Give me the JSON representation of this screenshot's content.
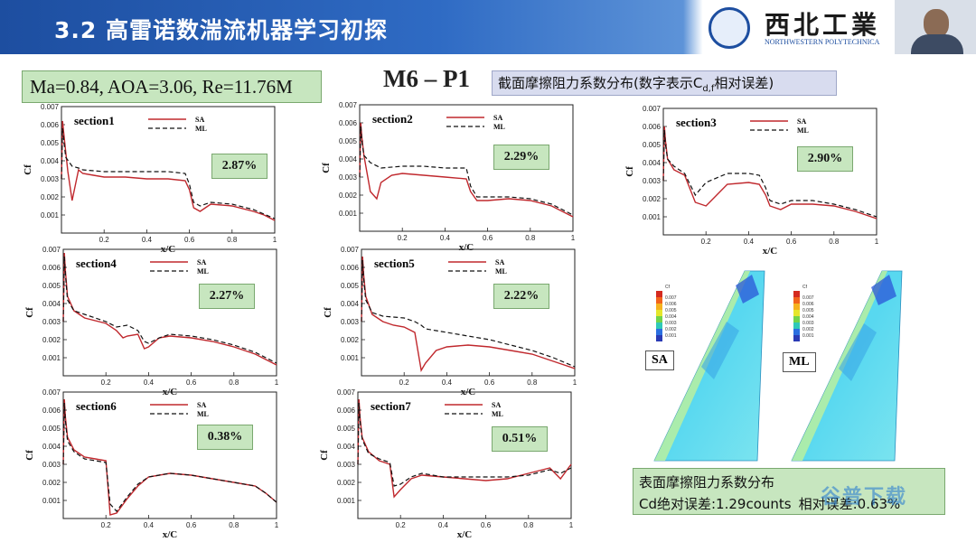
{
  "slide": {
    "title": "3.2 高雷诺数湍流机器学习初探"
  },
  "logo": {
    "cn": "西北工業",
    "en": "NORTHWESTERN POLYTECHNICA"
  },
  "conditions": "Ma=0.84, AOA=3.06, Re=11.76M",
  "case_title": "M6 – P1",
  "caption": {
    "prefix": "截面摩擦阻力系数分布(数字表示C",
    "sub": "d,f",
    "suffix": "相对误差)"
  },
  "legend": {
    "sa": "SA",
    "ml": "ML"
  },
  "axis": {
    "xlabel": "x/C",
    "ylabel": "Cf"
  },
  "colors": {
    "sa": "#c0282d",
    "ml": "#111111",
    "box": "#c7e6bf"
  },
  "chart_data": [
    {
      "type": "line",
      "title": "section1",
      "error": "2.87%",
      "xlim": [
        0,
        1
      ],
      "ylim": [
        0,
        0.007
      ],
      "xticks": [
        "0.2",
        "0.4",
        "0.6",
        "0.8",
        "1"
      ],
      "yticks": [
        "0.001",
        "0.002",
        "0.003",
        "0.004",
        "0.005",
        "0.006",
        "0.007"
      ],
      "series": [
        {
          "name": "SA",
          "x": [
            0,
            0.005,
            0.01,
            0.02,
            0.03,
            0.05,
            0.08,
            0.1,
            0.15,
            0.2,
            0.3,
            0.4,
            0.5,
            0.58,
            0.6,
            0.62,
            0.65,
            0.7,
            0.8,
            0.9,
            0.95,
            1.0
          ],
          "y": [
            0.003,
            0.0062,
            0.0056,
            0.0045,
            0.0034,
            0.0018,
            0.0035,
            0.0033,
            0.0032,
            0.0031,
            0.0031,
            0.003,
            0.003,
            0.0029,
            0.0024,
            0.0014,
            0.0012,
            0.0016,
            0.0015,
            0.0012,
            0.001,
            0.0007
          ]
        },
        {
          "name": "ML",
          "x": [
            0,
            0.005,
            0.01,
            0.02,
            0.05,
            0.08,
            0.1,
            0.2,
            0.3,
            0.4,
            0.5,
            0.58,
            0.6,
            0.62,
            0.65,
            0.7,
            0.8,
            0.9,
            1.0
          ],
          "y": [
            0.003,
            0.0058,
            0.0052,
            0.0042,
            0.0037,
            0.0036,
            0.0035,
            0.0034,
            0.0034,
            0.0034,
            0.0034,
            0.0033,
            0.0027,
            0.0017,
            0.0015,
            0.0017,
            0.0016,
            0.0013,
            0.0008
          ]
        }
      ]
    },
    {
      "type": "line",
      "title": "section2",
      "error": "2.29%",
      "xlim": [
        0,
        1
      ],
      "ylim": [
        0,
        0.007
      ],
      "xticks": [
        "0.2",
        "0.4",
        "0.6",
        "0.8",
        "1"
      ],
      "yticks": [
        "0.001",
        "0.002",
        "0.003",
        "0.004",
        "0.005",
        "0.006",
        "0.007"
      ],
      "series": [
        {
          "name": "SA",
          "x": [
            0,
            0.005,
            0.01,
            0.02,
            0.05,
            0.08,
            0.1,
            0.15,
            0.2,
            0.3,
            0.4,
            0.5,
            0.52,
            0.55,
            0.6,
            0.7,
            0.8,
            0.9,
            1.0
          ],
          "y": [
            0.003,
            0.006,
            0.0052,
            0.0042,
            0.0022,
            0.0018,
            0.0027,
            0.0031,
            0.0032,
            0.0031,
            0.003,
            0.0029,
            0.0022,
            0.0017,
            0.0017,
            0.0018,
            0.0017,
            0.0014,
            0.0008
          ]
        },
        {
          "name": "ML",
          "x": [
            0,
            0.005,
            0.01,
            0.02,
            0.05,
            0.1,
            0.2,
            0.3,
            0.4,
            0.5,
            0.52,
            0.55,
            0.6,
            0.7,
            0.8,
            0.9,
            1.0
          ],
          "y": [
            0.003,
            0.0058,
            0.005,
            0.0042,
            0.0038,
            0.0035,
            0.0036,
            0.0036,
            0.0035,
            0.0035,
            0.0025,
            0.0019,
            0.0019,
            0.0019,
            0.0018,
            0.0015,
            0.0009
          ]
        }
      ]
    },
    {
      "type": "line",
      "title": "section3",
      "error": "2.90%",
      "xlim": [
        0,
        1
      ],
      "ylim": [
        0,
        0.007
      ],
      "xticks": [
        "0.2",
        "0.4",
        "0.6",
        "0.8",
        "1"
      ],
      "yticks": [
        "0.001",
        "0.002",
        "0.003",
        "0.004",
        "0.005",
        "0.006",
        "0.007"
      ],
      "series": [
        {
          "name": "SA",
          "x": [
            0,
            0.005,
            0.01,
            0.02,
            0.05,
            0.1,
            0.15,
            0.2,
            0.25,
            0.3,
            0.4,
            0.45,
            0.48,
            0.5,
            0.55,
            0.6,
            0.7,
            0.8,
            0.9,
            1.0
          ],
          "y": [
            0.003,
            0.006,
            0.0052,
            0.0042,
            0.0036,
            0.0033,
            0.0018,
            0.0016,
            0.0022,
            0.0028,
            0.0029,
            0.0028,
            0.0022,
            0.0016,
            0.0014,
            0.0017,
            0.0017,
            0.0016,
            0.0013,
            0.0009
          ]
        },
        {
          "name": "ML",
          "x": [
            0,
            0.005,
            0.01,
            0.02,
            0.05,
            0.1,
            0.15,
            0.2,
            0.3,
            0.4,
            0.45,
            0.48,
            0.5,
            0.55,
            0.6,
            0.7,
            0.8,
            0.9,
            1.0
          ],
          "y": [
            0.003,
            0.0058,
            0.005,
            0.0042,
            0.0038,
            0.0034,
            0.0022,
            0.0029,
            0.0034,
            0.0034,
            0.0033,
            0.0026,
            0.0019,
            0.0017,
            0.0019,
            0.0019,
            0.0017,
            0.0014,
            0.001
          ]
        }
      ]
    },
    {
      "type": "line",
      "title": "section4",
      "error": "2.27%",
      "xlim": [
        0,
        1
      ],
      "ylim": [
        0,
        0.007
      ],
      "xticks": [
        "0.2",
        "0.4",
        "0.6",
        "0.8",
        "1"
      ],
      "yticks": [
        "0.001",
        "0.002",
        "0.003",
        "0.004",
        "0.005",
        "0.006",
        "0.007"
      ],
      "series": [
        {
          "name": "SA",
          "x": [
            0,
            0.005,
            0.01,
            0.02,
            0.05,
            0.1,
            0.2,
            0.25,
            0.28,
            0.3,
            0.35,
            0.38,
            0.4,
            0.45,
            0.5,
            0.6,
            0.7,
            0.8,
            0.9,
            1.0
          ],
          "y": [
            0.003,
            0.0068,
            0.0058,
            0.0044,
            0.0036,
            0.0032,
            0.0029,
            0.0025,
            0.0021,
            0.0022,
            0.0023,
            0.0015,
            0.0016,
            0.0021,
            0.0022,
            0.0021,
            0.0019,
            0.0016,
            0.0012,
            0.0006
          ]
        },
        {
          "name": "ML",
          "x": [
            0,
            0.005,
            0.01,
            0.02,
            0.05,
            0.1,
            0.2,
            0.25,
            0.3,
            0.35,
            0.38,
            0.4,
            0.45,
            0.5,
            0.6,
            0.7,
            0.8,
            0.9,
            1.0
          ],
          "y": [
            0.003,
            0.0066,
            0.0056,
            0.0042,
            0.0036,
            0.0034,
            0.003,
            0.0027,
            0.0028,
            0.0025,
            0.0019,
            0.0018,
            0.0021,
            0.0023,
            0.0022,
            0.002,
            0.0017,
            0.0013,
            0.0007
          ]
        }
      ]
    },
    {
      "type": "line",
      "title": "section5",
      "error": "2.22%",
      "xlim": [
        0,
        1
      ],
      "ylim": [
        0,
        0.007
      ],
      "xticks": [
        "0.2",
        "0.4",
        "0.6",
        "0.8",
        "1"
      ],
      "yticks": [
        "0.001",
        "0.002",
        "0.003",
        "0.004",
        "0.005",
        "0.006",
        "0.007"
      ],
      "series": [
        {
          "name": "SA",
          "x": [
            0,
            0.005,
            0.01,
            0.02,
            0.05,
            0.1,
            0.15,
            0.2,
            0.25,
            0.28,
            0.3,
            0.35,
            0.4,
            0.5,
            0.6,
            0.7,
            0.8,
            0.9,
            1.0
          ],
          "y": [
            0.003,
            0.0066,
            0.0056,
            0.0044,
            0.0034,
            0.003,
            0.0028,
            0.0027,
            0.0024,
            0.0003,
            0.0007,
            0.0014,
            0.0016,
            0.0017,
            0.0016,
            0.0014,
            0.0012,
            0.0008,
            0.0004
          ]
        },
        {
          "name": "ML",
          "x": [
            0,
            0.005,
            0.01,
            0.02,
            0.05,
            0.1,
            0.2,
            0.25,
            0.28,
            0.3,
            0.35,
            0.4,
            0.5,
            0.6,
            0.7,
            0.8,
            0.9,
            1.0
          ],
          "y": [
            0.003,
            0.0064,
            0.0054,
            0.0042,
            0.0035,
            0.0033,
            0.0032,
            0.003,
            0.0028,
            0.0026,
            0.0025,
            0.0024,
            0.0022,
            0.002,
            0.0017,
            0.0014,
            0.001,
            0.0005
          ]
        }
      ]
    },
    {
      "type": "line",
      "title": "section6",
      "error": "0.38%",
      "xlim": [
        0,
        1
      ],
      "ylim": [
        0,
        0.007
      ],
      "xticks": [
        "0.2",
        "0.4",
        "0.6",
        "0.8",
        "1"
      ],
      "yticks": [
        "0.001",
        "0.002",
        "0.003",
        "0.004",
        "0.005",
        "0.006",
        "0.007"
      ],
      "series": [
        {
          "name": "SA",
          "x": [
            0,
            0.005,
            0.01,
            0.02,
            0.05,
            0.1,
            0.15,
            0.2,
            0.22,
            0.25,
            0.3,
            0.35,
            0.4,
            0.5,
            0.6,
            0.7,
            0.8,
            0.9,
            0.95,
            1.0
          ],
          "y": [
            0.003,
            0.0066,
            0.0056,
            0.0045,
            0.0038,
            0.0034,
            0.0033,
            0.0032,
            0.0002,
            0.0003,
            0.0011,
            0.0018,
            0.0023,
            0.0025,
            0.0024,
            0.0022,
            0.002,
            0.0018,
            0.0014,
            0.0009
          ]
        },
        {
          "name": "ML",
          "x": [
            0,
            0.005,
            0.01,
            0.02,
            0.05,
            0.1,
            0.15,
            0.2,
            0.22,
            0.25,
            0.3,
            0.35,
            0.4,
            0.5,
            0.6,
            0.7,
            0.8,
            0.9,
            0.95,
            1.0
          ],
          "y": [
            0.003,
            0.0064,
            0.0054,
            0.0043,
            0.0037,
            0.0033,
            0.0032,
            0.0031,
            0.0008,
            0.0004,
            0.0012,
            0.0019,
            0.0023,
            0.0025,
            0.0024,
            0.0022,
            0.002,
            0.0018,
            0.0014,
            0.0009
          ]
        }
      ]
    },
    {
      "type": "line",
      "title": "section7",
      "error": "0.51%",
      "xlim": [
        0,
        1
      ],
      "ylim": [
        0,
        0.007
      ],
      "xticks": [
        "0.2",
        "0.4",
        "0.6",
        "0.8",
        "1"
      ],
      "yticks": [
        "0.001",
        "0.002",
        "0.003",
        "0.004",
        "0.005",
        "0.006",
        "0.007"
      ],
      "series": [
        {
          "name": "SA",
          "x": [
            0,
            0.005,
            0.01,
            0.02,
            0.05,
            0.1,
            0.15,
            0.17,
            0.2,
            0.25,
            0.3,
            0.4,
            0.5,
            0.6,
            0.7,
            0.8,
            0.9,
            0.95,
            1.0
          ],
          "y": [
            0.003,
            0.0066,
            0.0056,
            0.0045,
            0.0037,
            0.0032,
            0.003,
            0.0012,
            0.0016,
            0.0022,
            0.0024,
            0.0023,
            0.0022,
            0.0021,
            0.0022,
            0.0025,
            0.0028,
            0.0022,
            0.003
          ]
        },
        {
          "name": "ML",
          "x": [
            0,
            0.005,
            0.01,
            0.02,
            0.05,
            0.1,
            0.15,
            0.17,
            0.2,
            0.25,
            0.3,
            0.4,
            0.5,
            0.6,
            0.7,
            0.8,
            0.9,
            0.95,
            1.0
          ],
          "y": [
            0.003,
            0.0064,
            0.0054,
            0.0044,
            0.0036,
            0.0033,
            0.0031,
            0.0018,
            0.0019,
            0.0023,
            0.0025,
            0.0023,
            0.0023,
            0.0023,
            0.0023,
            0.0024,
            0.0027,
            0.0025,
            0.0028
          ]
        }
      ]
    }
  ],
  "contour": {
    "colorbar_title": "Cf",
    "colorbar_labels": [
      "0.007",
      "0.006",
      "0.005",
      "0.004",
      "0.003",
      "0.002",
      "0.001"
    ],
    "colorbar_colors": [
      "#d42a1f",
      "#f2641b",
      "#f6b21e",
      "#e5e62a",
      "#72d44a",
      "#2fc9b8",
      "#2b6fe0",
      "#2a3bb5"
    ],
    "models": [
      "SA",
      "ML"
    ]
  },
  "summary": {
    "title": "表面摩擦阻力系数分布",
    "abs_error": "Cd绝对误差:1.29counts",
    "rel_error": "相对误差:0.63%"
  },
  "watermark": "谷普下载"
}
